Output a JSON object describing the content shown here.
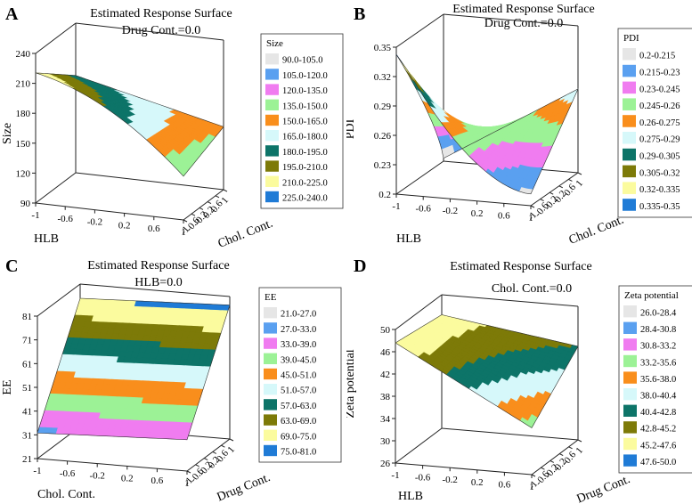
{
  "chart_data": [
    {
      "id": "A",
      "type": "surface",
      "panel_letter": "A",
      "title": "Estimated Response Surface",
      "subtitle": "Drug Cont.=0.0",
      "xlabel": "HLB",
      "ylabel": "Chol. Cont.",
      "zlabel": "Size",
      "x_ticks": [
        "-1",
        "-0.6",
        "-0.2",
        "0.2",
        "0.6",
        "1"
      ],
      "y_ticks": [
        "-1",
        "-0.6",
        "-0.2",
        "0.2",
        "0.6",
        "1"
      ],
      "z_ticks": [
        "90",
        "120",
        "150",
        "180",
        "210",
        "240"
      ],
      "zlim": [
        90,
        240
      ],
      "legend_title": "Size",
      "legend": [
        {
          "label": "90.0-105.0",
          "color": "#e6e6e6"
        },
        {
          "label": "105.0-120.0",
          "color": "#5aa0f0"
        },
        {
          "label": "120.0-135.0",
          "color": "#f07cf0"
        },
        {
          "label": "135.0-150.0",
          "color": "#9cf296"
        },
        {
          "label": "150.0-165.0",
          "color": "#f98e1c"
        },
        {
          "label": "165.0-180.0",
          "color": "#d6f8fa"
        },
        {
          "label": "180.0-195.0",
          "color": "#0d7468"
        },
        {
          "label": "195.0-210.0",
          "color": "#7d7a08"
        },
        {
          "label": "210.0-225.0",
          "color": "#fbfb9e"
        },
        {
          "label": "225.0-240.0",
          "color": "#1f7bd6"
        }
      ]
    },
    {
      "id": "B",
      "type": "surface",
      "panel_letter": "B",
      "title": "Estimated Response Surface",
      "subtitle": "Drug Cont.=0.0",
      "xlabel": "HLB",
      "ylabel": "Chol. Cont.",
      "zlabel": "PDI",
      "x_ticks": [
        "-1",
        "-0.6",
        "-0.2",
        "0.2",
        "0.6",
        "1"
      ],
      "y_ticks": [
        "-1",
        "-0.6",
        "-0.2",
        "0.2",
        "0.6",
        "1"
      ],
      "z_ticks": [
        "0.2",
        "0.23",
        "0.26",
        "0.29",
        "0.32",
        "0.35"
      ],
      "zlim": [
        0.2,
        0.35
      ],
      "legend_title": "PDI",
      "legend": [
        {
          "label": "0.2-0.215",
          "color": "#e6e6e6"
        },
        {
          "label": "0.215-0.23",
          "color": "#5aa0f0"
        },
        {
          "label": "0.23-0.245",
          "color": "#f07cf0"
        },
        {
          "label": "0.245-0.26",
          "color": "#9cf296"
        },
        {
          "label": "0.26-0.275",
          "color": "#f98e1c"
        },
        {
          "label": "0.275-0.29",
          "color": "#d6f8fa"
        },
        {
          "label": "0.29-0.305",
          "color": "#0d7468"
        },
        {
          "label": "0.305-0.32",
          "color": "#7d7a08"
        },
        {
          "label": "0.32-0.335",
          "color": "#fbfb9e"
        },
        {
          "label": "0.335-0.35",
          "color": "#1f7bd6"
        }
      ]
    },
    {
      "id": "C",
      "type": "surface",
      "panel_letter": "C",
      "title": "Estimated Response Surface",
      "subtitle": "HLB=0.0",
      "xlabel": "Chol. Cont.",
      "ylabel": "Drug Cont.",
      "zlabel": "EE",
      "x_ticks": [
        "-1",
        "-0.6",
        "-0.2",
        "0.2",
        "0.6",
        "1"
      ],
      "y_ticks": [
        "-1",
        "-0.6",
        "-0.2",
        "0.2",
        "0.6",
        "1"
      ],
      "z_ticks": [
        "21",
        "31",
        "41",
        "51",
        "61",
        "71",
        "81"
      ],
      "zlim": [
        21,
        81
      ],
      "legend_title": "EE",
      "legend": [
        {
          "label": "21.0-27.0",
          "color": "#e6e6e6"
        },
        {
          "label": "27.0-33.0",
          "color": "#5aa0f0"
        },
        {
          "label": "33.0-39.0",
          "color": "#f07cf0"
        },
        {
          "label": "39.0-45.0",
          "color": "#9cf296"
        },
        {
          "label": "45.0-51.0",
          "color": "#f98e1c"
        },
        {
          "label": "51.0-57.0",
          "color": "#d6f8fa"
        },
        {
          "label": "57.0-63.0",
          "color": "#0d7468"
        },
        {
          "label": "63.0-69.0",
          "color": "#7d7a08"
        },
        {
          "label": "69.0-75.0",
          "color": "#fbfb9e"
        },
        {
          "label": "75.0-81.0",
          "color": "#1f7bd6"
        }
      ]
    },
    {
      "id": "D",
      "type": "surface",
      "panel_letter": "D",
      "title": "Estimated Response Surface",
      "subtitle": "Chol. Cont.=0.0",
      "xlabel": "HLB",
      "ylabel": "Drug Cont.",
      "zlabel": "Zeta potential",
      "x_ticks": [
        "-1",
        "-0.6",
        "-0.2",
        "0.2",
        "0.6",
        "1"
      ],
      "y_ticks": [
        "-1",
        "-0.6",
        "-0.2",
        "0.2",
        "0.6",
        "1"
      ],
      "z_ticks": [
        "26",
        "30",
        "34",
        "38",
        "42",
        "46",
        "50"
      ],
      "zlim": [
        26,
        50
      ],
      "legend_title": "Zeta potential",
      "legend": [
        {
          "label": "26.0-28.4",
          "color": "#e6e6e6"
        },
        {
          "label": "28.4-30.8",
          "color": "#5aa0f0"
        },
        {
          "label": "30.8-33.2",
          "color": "#f07cf0"
        },
        {
          "label": "33.2-35.6",
          "color": "#9cf296"
        },
        {
          "label": "35.6-38.0",
          "color": "#f98e1c"
        },
        {
          "label": "38.0-40.4",
          "color": "#d6f8fa"
        },
        {
          "label": "40.4-42.8",
          "color": "#0d7468"
        },
        {
          "label": "42.8-45.2",
          "color": "#7d7a08"
        },
        {
          "label": "45.2-47.6",
          "color": "#fbfb9e"
        },
        {
          "label": "47.6-50.0",
          "color": "#1f7bd6"
        }
      ]
    }
  ]
}
